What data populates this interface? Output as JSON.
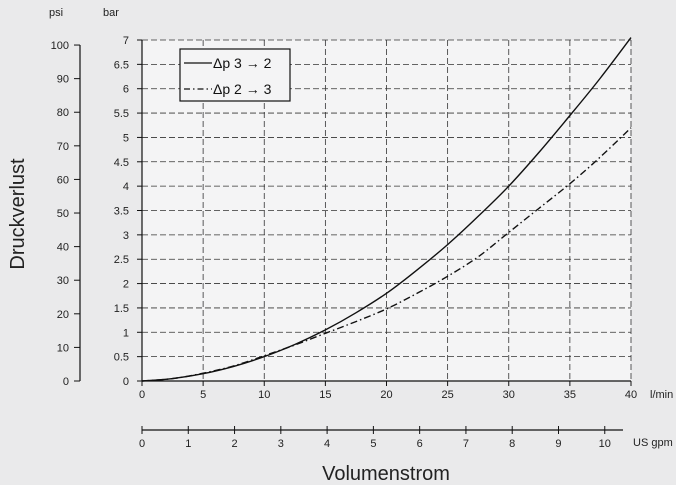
{
  "chart_data": {
    "type": "line",
    "ylabel": "Druckverlust",
    "xlabel": "Volumenstrom",
    "x_axis": {
      "unit": "l/min",
      "range": [
        0,
        40
      ],
      "ticks": [
        "0",
        "5",
        "10",
        "15",
        "20",
        "25",
        "30",
        "35",
        "40"
      ]
    },
    "x2_axis": {
      "unit": "US gpm",
      "range": [
        0,
        10.567
      ],
      "ticks": [
        "0",
        "1",
        "2",
        "3",
        "4",
        "5",
        "6",
        "7",
        "8",
        "9",
        "10"
      ]
    },
    "y_axis": {
      "unit": "bar",
      "range": [
        0,
        7
      ],
      "ticks": [
        "0",
        "0.5",
        "1",
        "1.5",
        "2",
        "2.5",
        "3",
        "3.5",
        "4",
        "4.5",
        "5",
        "5.5",
        "6",
        "6.5",
        "7"
      ]
    },
    "y2_axis": {
      "unit": "psi",
      "range": [
        0,
        101.5
      ],
      "ticks": [
        "0",
        "10",
        "20",
        "30",
        "40",
        "50",
        "60",
        "70",
        "80",
        "90",
        "100"
      ]
    },
    "grid": true,
    "legend_position": "top-left",
    "series": [
      {
        "name": "Δp 3 → 2",
        "style": "solid",
        "x": [
          0,
          2.5,
          5,
          7.5,
          10,
          12.5,
          15,
          17.5,
          20,
          22.5,
          25,
          27.5,
          30,
          32.5,
          35,
          37.5,
          40
        ],
        "y": [
          0,
          0.05,
          0.15,
          0.3,
          0.5,
          0.75,
          1.05,
          1.4,
          1.8,
          2.28,
          2.8,
          3.38,
          4.0,
          4.7,
          5.45,
          6.22,
          7.05
        ]
      },
      {
        "name": "Δp 2 → 3",
        "style": "dash-dot",
        "x": [
          0,
          2.5,
          5,
          7.5,
          10,
          12.5,
          15,
          17.5,
          20,
          22.5,
          25,
          27.5,
          30,
          32.5,
          35,
          37.5,
          40
        ],
        "y": [
          0,
          0.05,
          0.16,
          0.31,
          0.52,
          0.74,
          0.98,
          1.22,
          1.48,
          1.8,
          2.15,
          2.55,
          3.05,
          3.55,
          4.05,
          4.6,
          5.2
        ]
      }
    ]
  }
}
